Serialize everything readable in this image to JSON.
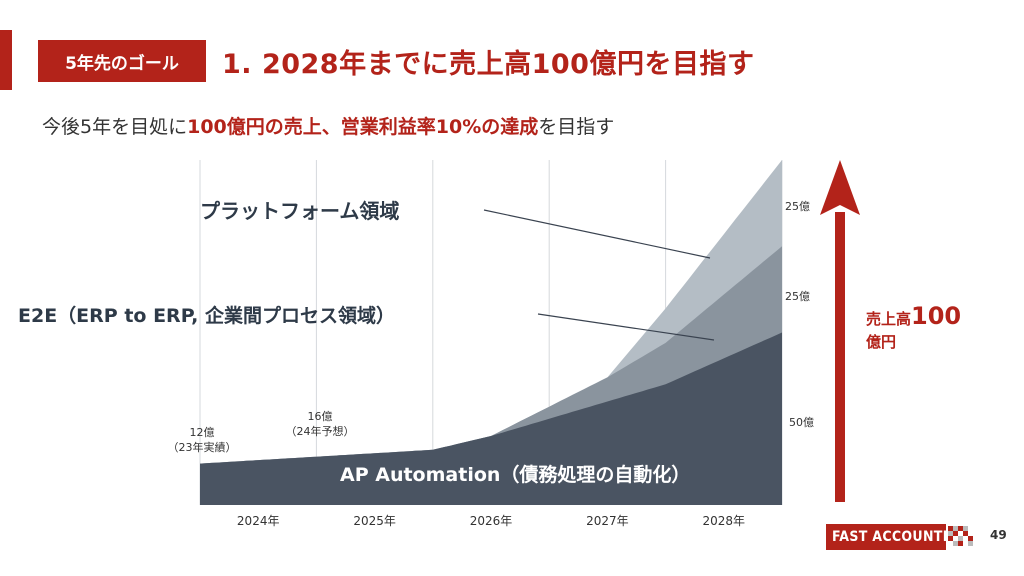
{
  "header": {
    "tag": "5年先のゴール",
    "title": "1.  2028年までに売上高100億円を目指す"
  },
  "subtitle": {
    "pre": "今後5年を目処に",
    "highlight": "100億円の売上、営業利益率10%の達成",
    "post": "を目指す"
  },
  "target": {
    "line1_prefix": "売上高",
    "line1_value": "100",
    "line2": "億円"
  },
  "segment_values": {
    "platform": "25億",
    "e2e": "25億",
    "ap": "50億"
  },
  "colors": {
    "accent": "#b3231a",
    "ap_area": "#4a5462",
    "e2e_area": "#8a949e",
    "platform_area": "#b4bdc5"
  },
  "footer": {
    "logo_text": "FAST ACCOUNTING",
    "page_number": "49"
  },
  "chart_data": {
    "type": "area",
    "categories": [
      "2024年",
      "2025年",
      "2026年",
      "2027年",
      "2028年"
    ],
    "annotations": [
      {
        "x": "2023",
        "line1": "12億",
        "line2": "（23年実績）"
      },
      {
        "x": "2025",
        "line1": "16億",
        "line2": "（24年予想）"
      }
    ],
    "series": [
      {
        "name": "AP Automation（債務処理の自動化）",
        "color": "#4a5462",
        "points": [
          [
            2023.0,
            12
          ],
          [
            2025.0,
            16
          ],
          [
            2025.5,
            20
          ],
          [
            2027.0,
            35
          ],
          [
            2028.0,
            50
          ]
        ]
      },
      {
        "name": "E2E（ERP to ERP, 企業間プロセス領域）",
        "color": "#8a949e",
        "points": [
          [
            2025.5,
            0
          ],
          [
            2026.5,
            7
          ],
          [
            2027.0,
            12
          ],
          [
            2028.0,
            25
          ]
        ]
      },
      {
        "name": "プラットフォーム領域",
        "color": "#b4bdc5",
        "points": [
          [
            2026.0,
            0
          ],
          [
            2026.5,
            0
          ],
          [
            2027.0,
            10
          ],
          [
            2028.0,
            25
          ]
        ]
      }
    ],
    "ylim": [
      0,
      100
    ]
  }
}
